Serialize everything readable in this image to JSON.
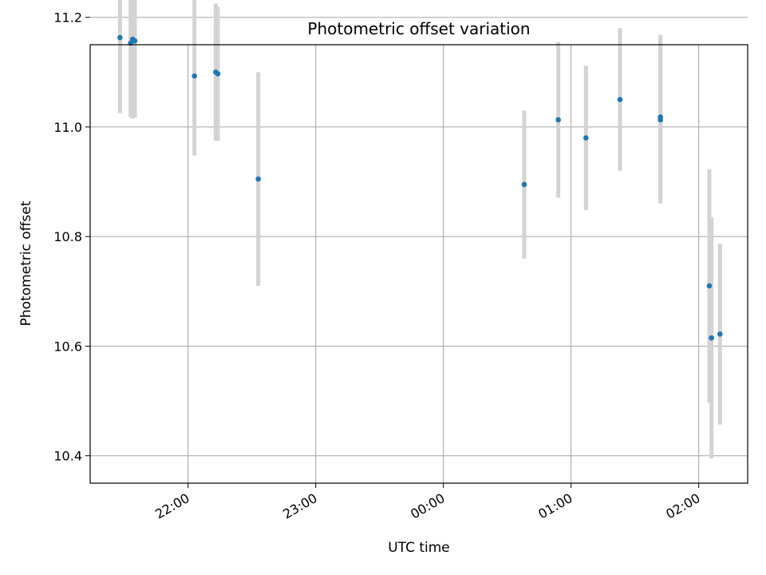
{
  "chart_data": {
    "type": "scatter",
    "title": "Photometric offset variation",
    "xlabel": "UTC time",
    "ylabel": "Photometric offset",
    "grid": true,
    "colors": {
      "point": "#1f77b4",
      "errorbar": "#d3d3d3",
      "grid": "#b0b0b0"
    },
    "xlim": [
      "21:14",
      "02:23"
    ],
    "ylim": [
      10.35,
      11.15
    ],
    "x_ticks": [
      "22:00",
      "23:00",
      "00:00",
      "01:00",
      "02:00"
    ],
    "y_ticks": [
      10.4,
      10.6,
      10.8,
      11.0,
      11.2
    ],
    "y_tick_labels": [
      "10.4",
      "10.6",
      "10.8",
      "11.0",
      "11.2"
    ],
    "points": [
      {
        "x": "21:28",
        "y": 11.163,
        "err": 0.138
      },
      {
        "x": "21:33",
        "y": 11.153,
        "err": 0.135
      },
      {
        "x": "21:34",
        "y": 11.16,
        "err": 0.145
      },
      {
        "x": "21:35",
        "y": 11.157,
        "err": 0.14
      },
      {
        "x": "22:03",
        "y": 11.093,
        "err": 0.145
      },
      {
        "x": "22:13",
        "y": 11.1,
        "err": 0.125
      },
      {
        "x": "22:14",
        "y": 11.097,
        "err": 0.122
      },
      {
        "x": "22:33",
        "y": 10.905,
        "err": 0.195
      },
      {
        "x": "00:38",
        "y": 10.895,
        "err": 0.135
      },
      {
        "x": "00:54",
        "y": 11.013,
        "err": 0.142
      },
      {
        "x": "01:07",
        "y": 10.98,
        "err": 0.132
      },
      {
        "x": "01:23",
        "y": 11.05,
        "err": 0.13
      },
      {
        "x": "01:42",
        "y": 11.013,
        "err": 0.153
      },
      {
        "x": "01:42",
        "y": 11.018,
        "err": 0.15
      },
      {
        "x": "02:05",
        "y": 10.71,
        "err": 0.213
      },
      {
        "x": "02:06",
        "y": 10.615,
        "err": 0.22
      },
      {
        "x": "02:10",
        "y": 10.622,
        "err": 0.165
      }
    ]
  }
}
